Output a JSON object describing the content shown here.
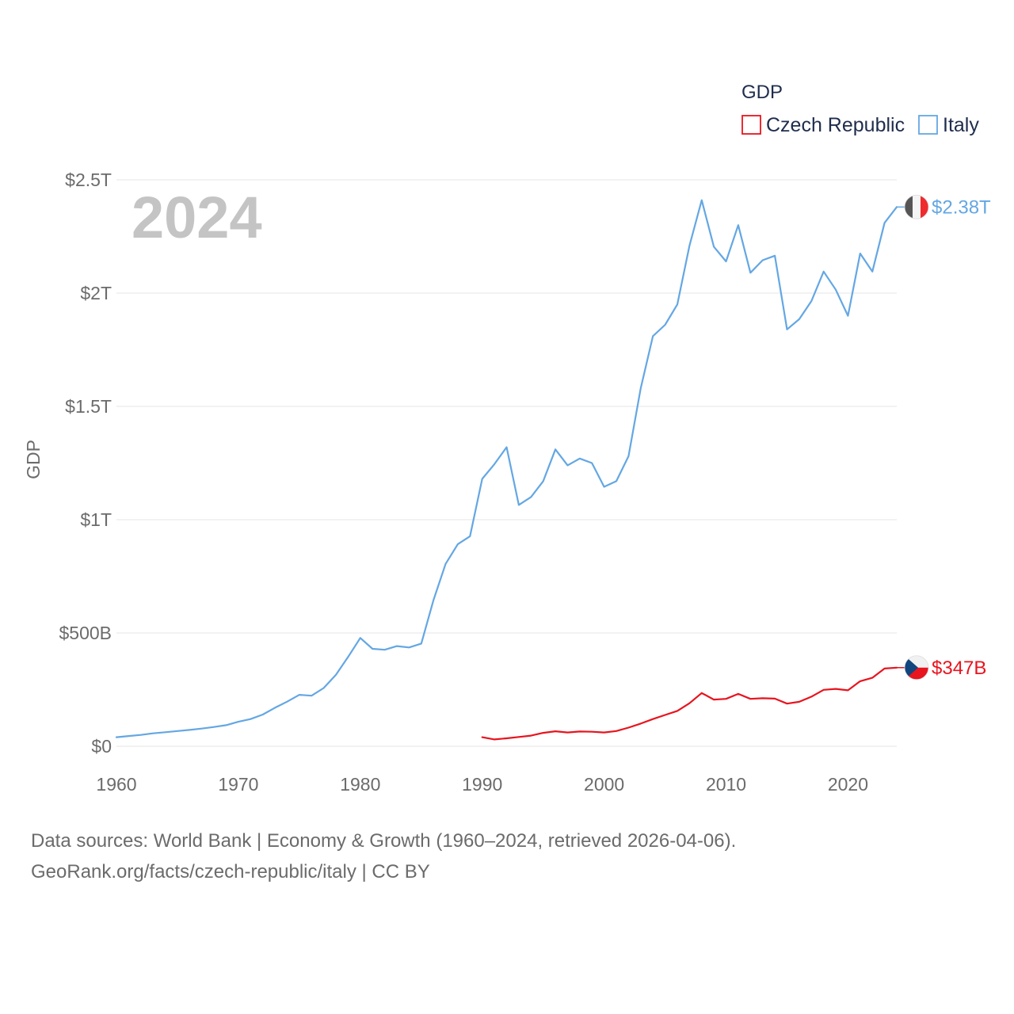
{
  "chart_data": {
    "type": "line",
    "title": "GDP",
    "xlabel": "",
    "ylabel": "GDP",
    "xlim": [
      1960,
      2024
    ],
    "ylim": [
      0,
      2500000000000
    ],
    "y_ticks": [
      {
        "value": 0,
        "label": "$0"
      },
      {
        "value": 500000000000,
        "label": "$500B"
      },
      {
        "value": 1000000000000,
        "label": "$1T"
      },
      {
        "value": 1500000000000,
        "label": "$1.5T"
      },
      {
        "value": 2000000000000,
        "label": "$2T"
      },
      {
        "value": 2500000000000,
        "label": "$2.5T"
      }
    ],
    "x_ticks": [
      {
        "value": 1960,
        "label": "1960"
      },
      {
        "value": 1970,
        "label": "1970"
      },
      {
        "value": 1980,
        "label": "1980"
      },
      {
        "value": 1990,
        "label": "1990"
      },
      {
        "value": 2000,
        "label": "2000"
      },
      {
        "value": 2010,
        "label": "2010"
      },
      {
        "value": 2020,
        "label": "2020"
      }
    ],
    "legend": {
      "title": "GDP",
      "position": "top-right"
    },
    "year_label": "2024",
    "grid": true,
    "series": [
      {
        "name": "Czech Republic",
        "color": "#e8141e",
        "end_label": "$347B",
        "flag_icon": "czech-flag-icon",
        "x": [
          1990,
          1991,
          1992,
          1993,
          1994,
          1995,
          1996,
          1997,
          1998,
          1999,
          2000,
          2001,
          2002,
          2003,
          2004,
          2005,
          2006,
          2007,
          2008,
          2009,
          2010,
          2011,
          2012,
          2013,
          2014,
          2015,
          2016,
          2017,
          2018,
          2019,
          2020,
          2021,
          2022,
          2023,
          2024
        ],
        "values": [
          40000000000.0,
          30000000000.0,
          35000000000.0,
          41000000000.0,
          47000000000.0,
          59000000000.0,
          66000000000.0,
          61000000000.0,
          65000000000.0,
          64000000000.0,
          61000000000.0,
          67000000000.0,
          82000000000.0,
          100000000000.0,
          120000000000.0,
          138000000000.0,
          156000000000.0,
          190000000000.0,
          235000000000.0,
          206000000000.0,
          209000000000.0,
          231000000000.0,
          209000000000.0,
          212000000000.0,
          210000000000.0,
          188000000000.0,
          196000000000.0,
          219000000000.0,
          249000000000.0,
          253000000000.0,
          247000000000.0,
          287000000000.0,
          302000000000.0,
          343000000000.0,
          347000000000.0
        ]
      },
      {
        "name": "Italy",
        "color": "#64a7e3",
        "end_label": "$2.38T",
        "flag_icon": "italy-flag-icon",
        "x": [
          1960,
          1961,
          1962,
          1963,
          1964,
          1965,
          1966,
          1967,
          1968,
          1969,
          1970,
          1971,
          1972,
          1973,
          1974,
          1975,
          1976,
          1977,
          1978,
          1979,
          1980,
          1981,
          1982,
          1983,
          1984,
          1985,
          1986,
          1987,
          1988,
          1989,
          1990,
          1991,
          1992,
          1993,
          1994,
          1995,
          1996,
          1997,
          1998,
          1999,
          2000,
          2001,
          2002,
          2003,
          2004,
          2005,
          2006,
          2007,
          2008,
          2009,
          2010,
          2011,
          2012,
          2013,
          2014,
          2015,
          2016,
          2017,
          2018,
          2019,
          2020,
          2021,
          2022,
          2023,
          2024
        ],
        "values": [
          40000000000.0,
          45000000000.0,
          50000000000.0,
          57000000000.0,
          62000000000.0,
          67000000000.0,
          72000000000.0,
          78000000000.0,
          85000000000.0,
          93000000000.0,
          108000000000.0,
          120000000000.0,
          140000000000.0,
          170000000000.0,
          197000000000.0,
          227000000000.0,
          223000000000.0,
          257000000000.0,
          315000000000.0,
          394000000000.0,
          478000000000.0,
          430000000000.0,
          426000000000.0,
          442000000000.0,
          436000000000.0,
          453000000000.0,
          645000000000.0,
          805000000000.0,
          892000000000.0,
          927000000000.0,
          1180000000000.0,
          1245000000000.0,
          1320000000000.0,
          1065000000000.0,
          1100000000000.0,
          1170000000000.0,
          1310000000000.0,
          1240000000000.0,
          1270000000000.0,
          1250000000000.0,
          1145000000000.0,
          1170000000000.0,
          1280000000000.0,
          1580000000000.0,
          1810000000000.0,
          1860000000000.0,
          1950000000000.0,
          2210000000000.0,
          2410000000000.0,
          2205000000000.0,
          2140000000000.0,
          2300000000000.0,
          2090000000000.0,
          2145000000000.0,
          2165000000000.0,
          1840000000000.0,
          1885000000000.0,
          1965000000000.0,
          2095000000000.0,
          2015000000000.0,
          1900000000000.0,
          2175000000000.0,
          2095000000000.0,
          2310000000000.0,
          2380000000000.0
        ]
      }
    ],
    "source_text": "Data sources: World Bank | Economy & Growth (1960–2024, retrieved 2026-04-06).",
    "credit_text": "GeoRank.org/facts/czech-republic/italy | CC BY"
  }
}
